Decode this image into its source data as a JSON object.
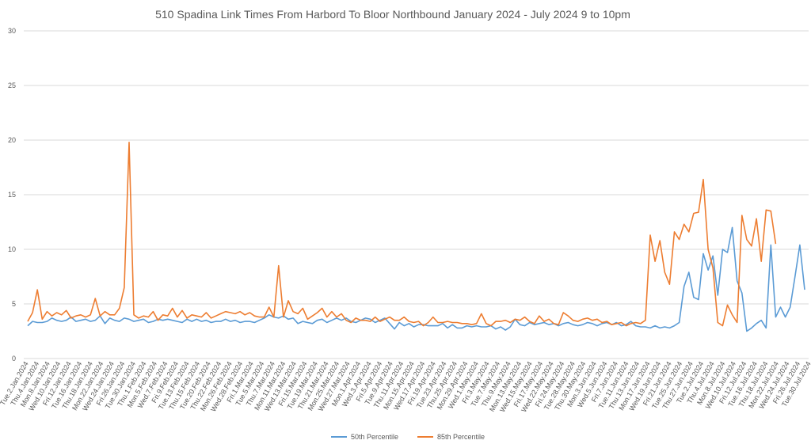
{
  "chart_data": {
    "type": "line",
    "title": "510 Spadina Link Times From Harbord To Bloor Northbound January 2024 - July 2024 9 to 10pm",
    "xlabel": "",
    "ylabel": "",
    "ylim": [
      0,
      30
    ],
    "yticks": [
      0,
      5,
      10,
      15,
      20,
      25,
      30
    ],
    "grid": true,
    "legend_position": "bottom",
    "x_labels": [
      "Tue.2.Jan.2024",
      "Thu.4.Jan.2024",
      "Mon.8.Jan.2024",
      "Wed.10.Jan.2024",
      "Fri.12.Jan.2024",
      "Tue.16.Jan.2024",
      "Thu.18.Jan.2024",
      "Mon.22.Jan.2024",
      "Wed.24.Jan.2024",
      "Fri.26.Jan.2024",
      "Tue.30.Jan.2024",
      "Thu.1.Feb.2024",
      "Mon.5.Feb.2024",
      "Wed.7.Feb.2024",
      "Fri.9.Feb.2024",
      "Tue.13.Feb.2024",
      "Thu.15.Feb.2024",
      "Tue.20.Feb.2024",
      "Thu.22.Feb.2024",
      "Mon.26.Feb.2024",
      "Wed.28.Feb.2024",
      "Fri.1.Mar.2024",
      "Tue.5.Mar.2024",
      "Thu.7.Mar.2024",
      "Mon.11.Mar.2024",
      "Wed.13.Mar.2024",
      "Fri.15.Mar.2024",
      "Tue.19.Mar.2024",
      "Thu.21.Mar.2024",
      "Mon.25.Mar.2024",
      "Wed.27.Mar.2024",
      "Mon.1.Apr.2024",
      "Wed.3.Apr.2024",
      "Fri.5.Apr.2024",
      "Tue.9.Apr.2024",
      "Thu.11.Apr.2024",
      "Mon.15.Apr.2024",
      "Wed.17.Apr.2024",
      "Fri.19.Apr.2024",
      "Tue.23.Apr.2024",
      "Thu.25.Apr.2024",
      "Mon.29.Apr.2024",
      "Wed.1.May.2024",
      "Fri.3.May.2024",
      "Tue.7.May.2024",
      "Thu.9.May.2024",
      "Mon.13.May.2024",
      "Wed.15.May.2024",
      "Fri.17.May.2024",
      "Wed.22.May.2024",
      "Fri.24.May.2024",
      "Tue.28.May.2024",
      "Thu.30.May.2024",
      "Mon.3.Jun.2024",
      "Wed.5.Jun.2024",
      "Fri.7.Jun.2024",
      "Tue.11.Jun.2024",
      "Thu.13.Jun.2024",
      "Mon.17.Jun.2024",
      "Wed.19.Jun.2024",
      "Fri.21.Jun.2024",
      "Tue.25.Jun.2024",
      "Thu.27.Jun.2024",
      "Tue.2.Jul.2024",
      "Thu.4.Jul.2024",
      "Mon.8.Jul.2024",
      "Wed.10.Jul.2024",
      "Fri.12.Jul.2024",
      "Tue.16.Jul.2024",
      "Thu.18.Jul.2024",
      "Mon.22.Jul.2024",
      "Wed.24.Jul.2024",
      "Fri.26.Jul.2024",
      "Tue.30.Jul.2024"
    ],
    "series": [
      {
        "name": "50th Percentile",
        "color": "#5B9BD5",
        "values": [
          3.0,
          3.4,
          3.3,
          3.3,
          3.4,
          3.7,
          3.5,
          3.4,
          3.5,
          3.8,
          3.4,
          3.5,
          3.6,
          3.4,
          3.5,
          3.9,
          3.2,
          3.7,
          3.5,
          3.4,
          3.7,
          3.6,
          3.4,
          3.5,
          3.6,
          3.3,
          3.4,
          3.6,
          3.5,
          3.6,
          3.5,
          3.4,
          3.3,
          3.6,
          3.4,
          3.6,
          3.4,
          3.5,
          3.3,
          3.4,
          3.4,
          3.6,
          3.4,
          3.5,
          3.3,
          3.4,
          3.4,
          3.3,
          3.5,
          3.7,
          4.0,
          3.8,
          3.7,
          3.9,
          3.6,
          3.7,
          3.2,
          3.4,
          3.3,
          3.2,
          3.5,
          3.6,
          3.3,
          3.5,
          3.7,
          3.5,
          3.7,
          3.4,
          3.3,
          3.5,
          3.7,
          3.6,
          3.3,
          3.5,
          3.7,
          3.2,
          2.7,
          3.3,
          3.0,
          3.2,
          2.9,
          3.1,
          3.1,
          3.0,
          3.0,
          3.0,
          3.2,
          2.8,
          3.1,
          2.8,
          2.8,
          3.0,
          2.9,
          3.0,
          2.9,
          2.9,
          3.0,
          2.7,
          2.9,
          2.6,
          2.9,
          3.6,
          3.1,
          3.0,
          3.3,
          3.1,
          3.2,
          3.3,
          3.1,
          3.2,
          3.0,
          3.2,
          3.3,
          3.1,
          3.0,
          3.1,
          3.3,
          3.2,
          3.0,
          3.2,
          3.3,
          3.1,
          3.3,
          3.0,
          3.1,
          3.4,
          3.0,
          2.9,
          2.9,
          2.8,
          3.0,
          2.8,
          2.9,
          2.8,
          3.0,
          3.3,
          6.6,
          7.9,
          5.6,
          5.4,
          9.6,
          8.1,
          9.4,
          5.8,
          10.0,
          9.7,
          12.0,
          7.1,
          6.0,
          2.5,
          2.8,
          3.2,
          3.5,
          2.8,
          10.4,
          3.8,
          4.7,
          3.8,
          4.7,
          7.5,
          10.4,
          6.3
        ]
      },
      {
        "name": "85th Percentile",
        "color": "#ED7D31",
        "values": [
          3.4,
          4.2,
          6.3,
          3.6,
          4.3,
          3.9,
          4.2,
          4.0,
          4.4,
          3.7,
          3.9,
          4.0,
          3.8,
          4.0,
          5.5,
          3.9,
          4.3,
          4.0,
          4.0,
          4.6,
          6.5,
          19.8,
          4.0,
          3.7,
          3.9,
          3.8,
          4.3,
          3.5,
          4.0,
          3.9,
          4.6,
          3.8,
          4.4,
          3.7,
          4.0,
          3.9,
          3.8,
          4.2,
          3.7,
          3.9,
          4.1,
          4.3,
          4.2,
          4.1,
          4.3,
          4.0,
          4.2,
          3.9,
          3.8,
          3.8,
          4.7,
          3.8,
          8.5,
          3.8,
          5.3,
          4.3,
          4.1,
          4.6,
          3.6,
          3.9,
          4.2,
          4.6,
          3.8,
          4.3,
          3.8,
          4.1,
          3.5,
          3.3,
          3.7,
          3.5,
          3.5,
          3.4,
          3.8,
          3.4,
          3.6,
          3.8,
          3.5,
          3.5,
          3.8,
          3.4,
          3.3,
          3.4,
          3.0,
          3.3,
          3.8,
          3.3,
          3.3,
          3.4,
          3.3,
          3.3,
          3.2,
          3.2,
          3.1,
          3.2,
          4.1,
          3.2,
          3.0,
          3.4,
          3.4,
          3.5,
          3.3,
          3.6,
          3.5,
          3.8,
          3.4,
          3.2,
          3.9,
          3.4,
          3.6,
          3.2,
          3.1,
          4.2,
          3.9,
          3.5,
          3.4,
          3.6,
          3.7,
          3.5,
          3.6,
          3.3,
          3.4,
          3.1,
          3.2,
          3.3,
          3.0,
          3.2,
          3.3,
          3.2,
          3.5,
          11.3,
          8.9,
          10.8,
          7.9,
          6.8,
          11.6,
          10.9,
          12.3,
          11.6,
          13.3,
          13.4,
          16.4,
          10.0,
          8.3,
          3.3,
          3.0,
          4.9,
          4.0,
          3.3,
          13.1,
          10.9,
          10.3,
          12.8,
          8.9,
          13.6,
          13.5,
          10.5
        ]
      }
    ]
  }
}
